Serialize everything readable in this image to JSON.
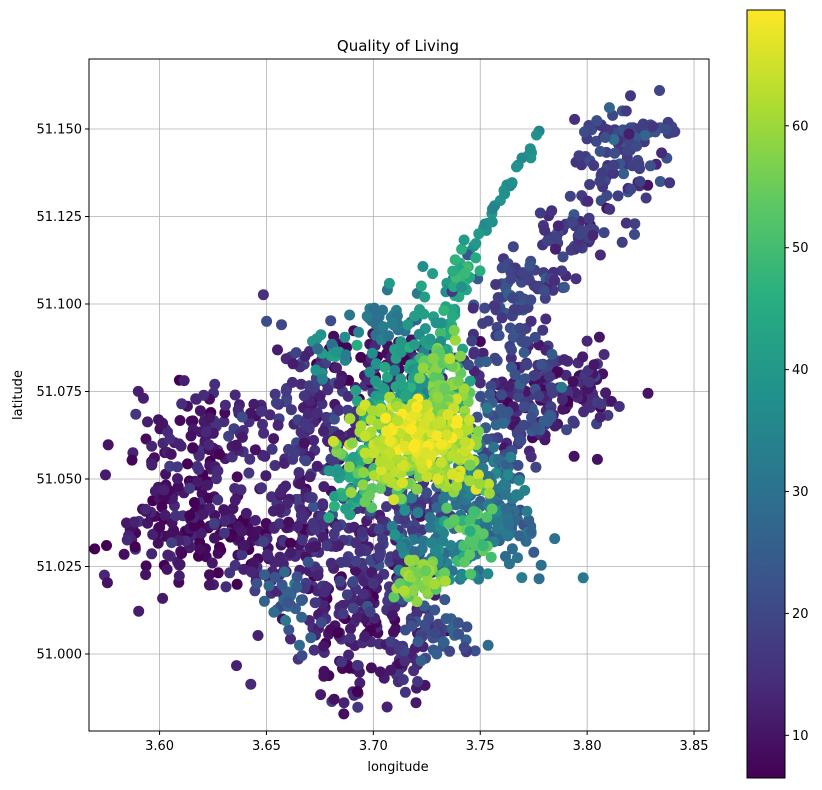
{
  "chart_data": {
    "type": "scatter",
    "title": "Quality of Living",
    "xlabel": "longitude",
    "ylabel": "latitude",
    "xlim": [
      3.567,
      3.857
    ],
    "ylim": [
      50.978,
      51.17
    ],
    "x_ticks": [
      3.6,
      3.65,
      3.7,
      3.75,
      3.8,
      3.85
    ],
    "x_tick_labels": [
      "3.60",
      "3.65",
      "3.70",
      "3.75",
      "3.80",
      "3.85"
    ],
    "y_ticks": [
      51.0,
      51.025,
      51.05,
      51.075,
      51.1,
      51.125,
      51.15
    ],
    "y_tick_labels": [
      "51.000",
      "51.025",
      "51.050",
      "51.075",
      "51.100",
      "51.125",
      "51.150"
    ],
    "grid": true,
    "colormap": "viridis",
    "colorbar": {
      "range": [
        6.5,
        69.5
      ],
      "ticks": [
        10,
        20,
        30,
        40,
        50,
        60
      ],
      "tick_labels": [
        "10",
        "20",
        "30",
        "40",
        "50",
        "60"
      ]
    },
    "clusters": [
      {
        "x": 3.722,
        "y": 51.063,
        "sx": 0.008,
        "sy": 0.004,
        "value": 66,
        "n": 90
      },
      {
        "x": 3.712,
        "y": 51.06,
        "sx": 0.012,
        "sy": 0.006,
        "value": 62,
        "n": 120
      },
      {
        "x": 3.735,
        "y": 51.07,
        "sx": 0.006,
        "sy": 0.008,
        "value": 58,
        "n": 80
      },
      {
        "x": 3.728,
        "y": 51.082,
        "sx": 0.003,
        "sy": 0.004,
        "value": 56,
        "n": 30
      },
      {
        "x": 3.74,
        "y": 51.058,
        "sx": 0.006,
        "sy": 0.006,
        "value": 62,
        "n": 50
      },
      {
        "x": 3.71,
        "y": 51.052,
        "sx": 0.012,
        "sy": 0.004,
        "value": 55,
        "n": 60
      },
      {
        "x": 3.722,
        "y": 51.021,
        "sx": 0.006,
        "sy": 0.003,
        "value": 58,
        "n": 40
      },
      {
        "x": 3.745,
        "y": 51.035,
        "sx": 0.006,
        "sy": 0.006,
        "value": 52,
        "n": 40
      },
      {
        "x": 3.74,
        "y": 51.11,
        "sx": 0.004,
        "sy": 0.003,
        "value": 46,
        "n": 15
      },
      {
        "x": 3.725,
        "y": 51.09,
        "sx": 0.006,
        "sy": 0.008,
        "value": 42,
        "n": 40
      },
      {
        "x": 3.72,
        "y": 51.075,
        "sx": 0.01,
        "sy": 0.006,
        "value": 40,
        "n": 80
      },
      {
        "x": 3.7,
        "y": 51.068,
        "sx": 0.006,
        "sy": 0.008,
        "value": 42,
        "n": 40
      },
      {
        "x": 3.688,
        "y": 51.05,
        "sx": 0.004,
        "sy": 0.006,
        "value": 42,
        "n": 30
      },
      {
        "x": 3.745,
        "y": 51.05,
        "sx": 0.01,
        "sy": 0.008,
        "value": 32,
        "n": 100
      },
      {
        "x": 3.76,
        "y": 51.04,
        "sx": 0.012,
        "sy": 0.008,
        "value": 28,
        "n": 100
      },
      {
        "x": 3.735,
        "y": 51.03,
        "sx": 0.012,
        "sy": 0.006,
        "value": 34,
        "n": 80
      },
      {
        "x": 3.705,
        "y": 51.095,
        "sx": 0.008,
        "sy": 0.004,
        "value": 32,
        "n": 40
      },
      {
        "x": 3.68,
        "y": 51.085,
        "sx": 0.004,
        "sy": 0.003,
        "value": 36,
        "n": 15
      },
      {
        "x": 3.765,
        "y": 51.1,
        "sx": 0.01,
        "sy": 0.008,
        "value": 20,
        "n": 80
      },
      {
        "x": 3.775,
        "y": 51.075,
        "sx": 0.016,
        "sy": 0.008,
        "value": 14,
        "n": 140
      },
      {
        "x": 3.76,
        "y": 51.065,
        "sx": 0.012,
        "sy": 0.008,
        "value": 22,
        "n": 80
      },
      {
        "x": 3.705,
        "y": 51.082,
        "sx": 0.014,
        "sy": 0.005,
        "value": 9,
        "n": 80
      },
      {
        "x": 3.67,
        "y": 51.065,
        "sx": 0.016,
        "sy": 0.012,
        "value": 15,
        "n": 160
      },
      {
        "x": 3.62,
        "y": 51.06,
        "sx": 0.018,
        "sy": 0.008,
        "value": 12,
        "n": 120
      },
      {
        "x": 3.605,
        "y": 51.035,
        "sx": 0.014,
        "sy": 0.008,
        "value": 10,
        "n": 120
      },
      {
        "x": 3.635,
        "y": 51.032,
        "sx": 0.008,
        "sy": 0.005,
        "value": 8,
        "n": 50
      },
      {
        "x": 3.665,
        "y": 51.03,
        "sx": 0.016,
        "sy": 0.01,
        "value": 13,
        "n": 130
      },
      {
        "x": 3.69,
        "y": 51.01,
        "sx": 0.016,
        "sy": 0.012,
        "value": 11,
        "n": 150
      },
      {
        "x": 3.7,
        "y": 51.03,
        "sx": 0.012,
        "sy": 0.01,
        "value": 15,
        "n": 100
      },
      {
        "x": 3.72,
        "y": 51.04,
        "sx": 0.01,
        "sy": 0.008,
        "value": 18,
        "n": 80
      },
      {
        "x": 3.66,
        "y": 51.015,
        "sx": 0.006,
        "sy": 0.005,
        "value": 26,
        "n": 30
      },
      {
        "x": 3.73,
        "y": 51.005,
        "sx": 0.01,
        "sy": 0.006,
        "value": 22,
        "n": 50
      },
      {
        "x": 3.715,
        "y": 50.995,
        "sx": 0.004,
        "sy": 0.004,
        "value": 14,
        "n": 20
      },
      {
        "x": 3.815,
        "y": 51.14,
        "sx": 0.012,
        "sy": 0.008,
        "value": 18,
        "n": 90
      },
      {
        "x": 3.795,
        "y": 51.12,
        "sx": 0.01,
        "sy": 0.004,
        "value": 16,
        "n": 50
      },
      {
        "x": 3.78,
        "y": 51.106,
        "sx": 0.008,
        "sy": 0.002,
        "value": 20,
        "n": 20
      },
      {
        "x": 3.8,
        "y": 51.075,
        "sx": 0.006,
        "sy": 0.004,
        "value": 12,
        "n": 30
      }
    ],
    "strips": [
      {
        "x1": 3.734,
        "y1": 51.103,
        "x2": 3.777,
        "y2": 51.148,
        "value": 38,
        "n": 40
      },
      {
        "x1": 3.731,
        "y1": 51.085,
        "x2": 3.745,
        "y2": 51.112,
        "value": 44,
        "n": 25
      },
      {
        "x1": 3.8,
        "y1": 51.15,
        "x2": 3.843,
        "y2": 51.15,
        "value": 20,
        "n": 30
      }
    ]
  }
}
